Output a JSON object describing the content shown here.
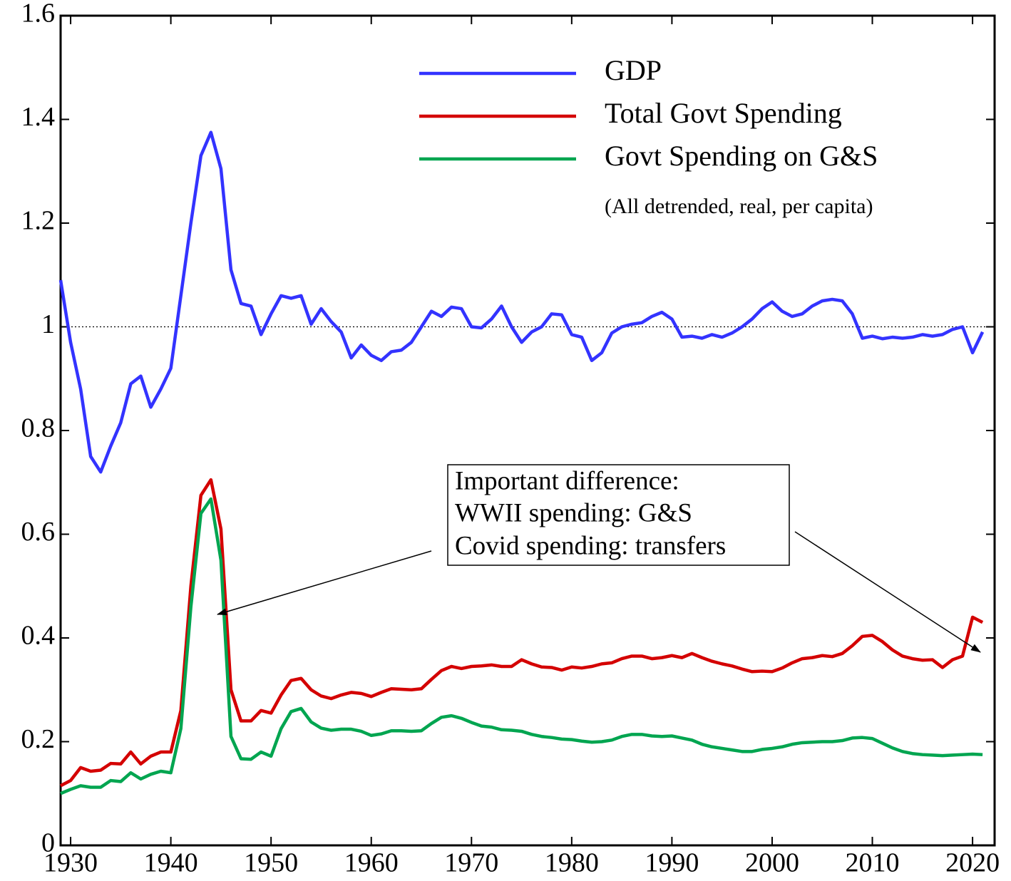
{
  "chart_data": {
    "type": "line",
    "x": [
      1929,
      1930,
      1931,
      1932,
      1933,
      1934,
      1935,
      1936,
      1937,
      1938,
      1939,
      1940,
      1941,
      1942,
      1943,
      1944,
      1945,
      1946,
      1947,
      1948,
      1949,
      1950,
      1951,
      1952,
      1953,
      1954,
      1955,
      1956,
      1957,
      1958,
      1959,
      1960,
      1961,
      1962,
      1963,
      1964,
      1965,
      1966,
      1967,
      1968,
      1969,
      1970,
      1971,
      1972,
      1973,
      1974,
      1975,
      1976,
      1977,
      1978,
      1979,
      1980,
      1981,
      1982,
      1983,
      1984,
      1985,
      1986,
      1987,
      1988,
      1989,
      1990,
      1991,
      1992,
      1993,
      1994,
      1995,
      1996,
      1997,
      1998,
      1999,
      2000,
      2001,
      2002,
      2003,
      2004,
      2005,
      2006,
      2007,
      2008,
      2009,
      2010,
      2011,
      2012,
      2013,
      2014,
      2015,
      2016,
      2017,
      2018,
      2019,
      2020,
      2021
    ],
    "series": [
      {
        "name": "GDP",
        "color": "#3333ff",
        "values": [
          1.09,
          0.97,
          0.88,
          0.75,
          0.72,
          0.77,
          0.815,
          0.89,
          0.905,
          0.845,
          0.88,
          0.92,
          1.06,
          1.2,
          1.33,
          1.375,
          1.305,
          1.11,
          1.045,
          1.04,
          0.985,
          1.025,
          1.06,
          1.055,
          1.06,
          1.005,
          1.035,
          1.01,
          0.99,
          0.94,
          0.965,
          0.945,
          0.935,
          0.952,
          0.955,
          0.97,
          1.0,
          1.03,
          1.02,
          1.038,
          1.035,
          1.0,
          0.998,
          1.015,
          1.04,
          1.0,
          0.97,
          0.99,
          1.0,
          1.025,
          1.023,
          0.985,
          0.98,
          0.935,
          0.95,
          0.988,
          1.0,
          1.005,
          1.008,
          1.02,
          1.028,
          1.015,
          0.98,
          0.982,
          0.978,
          0.985,
          0.98,
          0.988,
          1.0,
          1.015,
          1.035,
          1.048,
          1.03,
          1.02,
          1.025,
          1.04,
          1.05,
          1.053,
          1.05,
          1.025,
          0.978,
          0.982,
          0.977,
          0.98,
          0.978,
          0.98,
          0.985,
          0.982,
          0.985,
          0.995,
          1.0,
          0.95,
          0.99
        ]
      },
      {
        "name": "Total Govt Spending",
        "color": "#d40000",
        "values": [
          0.115,
          0.125,
          0.15,
          0.143,
          0.145,
          0.158,
          0.157,
          0.18,
          0.157,
          0.172,
          0.18,
          0.18,
          0.26,
          0.5,
          0.675,
          0.705,
          0.61,
          0.3,
          0.24,
          0.24,
          0.26,
          0.255,
          0.29,
          0.318,
          0.322,
          0.3,
          0.288,
          0.283,
          0.29,
          0.295,
          0.293,
          0.287,
          0.295,
          0.302,
          0.301,
          0.3,
          0.302,
          0.32,
          0.337,
          0.345,
          0.341,
          0.345,
          0.346,
          0.348,
          0.345,
          0.345,
          0.358,
          0.35,
          0.344,
          0.343,
          0.338,
          0.344,
          0.342,
          0.345,
          0.35,
          0.352,
          0.36,
          0.365,
          0.365,
          0.36,
          0.362,
          0.366,
          0.362,
          0.37,
          0.362,
          0.355,
          0.35,
          0.346,
          0.34,
          0.335,
          0.336,
          0.335,
          0.342,
          0.352,
          0.36,
          0.362,
          0.366,
          0.364,
          0.37,
          0.385,
          0.403,
          0.405,
          0.393,
          0.377,
          0.365,
          0.36,
          0.357,
          0.358,
          0.343,
          0.358,
          0.365,
          0.44,
          0.43
        ]
      },
      {
        "name": "Govt Spending on G&S",
        "color": "#00a550",
        "values": [
          0.1,
          0.108,
          0.115,
          0.112,
          0.112,
          0.125,
          0.123,
          0.14,
          0.128,
          0.137,
          0.143,
          0.14,
          0.225,
          0.46,
          0.64,
          0.668,
          0.55,
          0.21,
          0.167,
          0.166,
          0.18,
          0.172,
          0.225,
          0.258,
          0.264,
          0.238,
          0.226,
          0.222,
          0.224,
          0.224,
          0.22,
          0.212,
          0.215,
          0.221,
          0.221,
          0.22,
          0.221,
          0.235,
          0.247,
          0.25,
          0.245,
          0.237,
          0.23,
          0.228,
          0.223,
          0.222,
          0.22,
          0.214,
          0.21,
          0.208,
          0.205,
          0.204,
          0.201,
          0.199,
          0.2,
          0.203,
          0.21,
          0.214,
          0.214,
          0.211,
          0.21,
          0.211,
          0.207,
          0.203,
          0.195,
          0.19,
          0.187,
          0.184,
          0.181,
          0.181,
          0.185,
          0.187,
          0.19,
          0.195,
          0.198,
          0.199,
          0.2,
          0.2,
          0.202,
          0.207,
          0.208,
          0.206,
          0.197,
          0.188,
          0.181,
          0.177,
          0.175,
          0.174,
          0.173,
          0.174,
          0.175,
          0.176,
          0.175
        ]
      }
    ],
    "legend_note": "(All detrended, real, per capita)",
    "annotation": [
      "Important difference:",
      "WWII spending: G&S",
      "Covid spending: transfers"
    ],
    "reference_line": 1,
    "xlim": [
      1929,
      2022.2
    ],
    "ylim": [
      0,
      1.6
    ],
    "xticks": [
      1930,
      1940,
      1950,
      1960,
      1970,
      1980,
      1990,
      2000,
      2010,
      2020
    ],
    "yticks": [
      0,
      0.2,
      0.4,
      0.6,
      0.8,
      1,
      1.2,
      1.4,
      1.6
    ]
  }
}
